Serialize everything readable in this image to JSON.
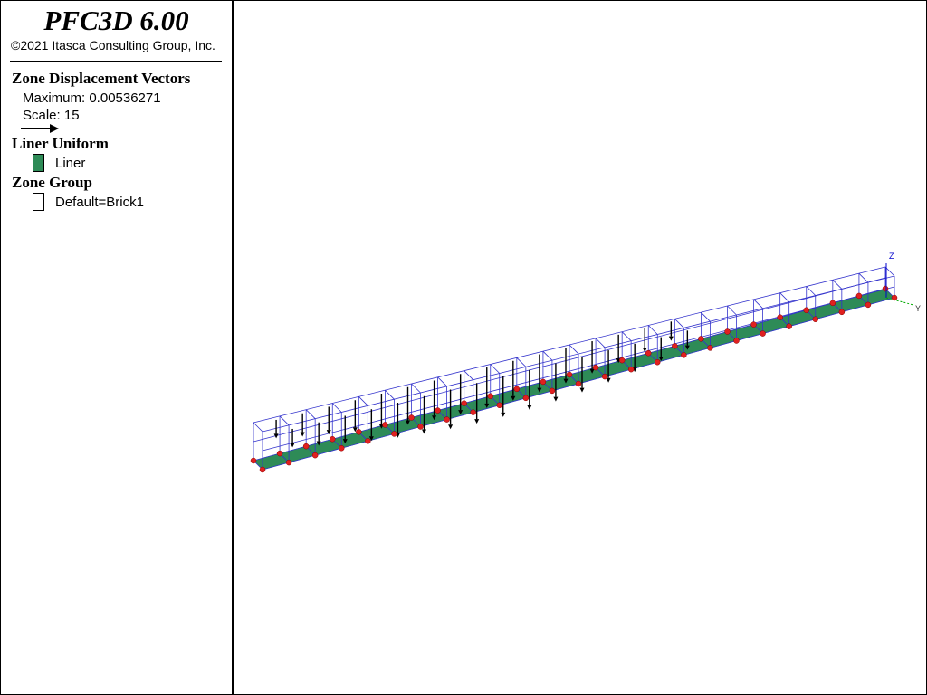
{
  "header": {
    "title": "PFC3D 6.00",
    "copyright": "©2021 Itasca Consulting Group, Inc."
  },
  "legend": {
    "sections": [
      {
        "title": "Zone Displacement Vectors",
        "items": [
          "Maximum: 0.00536271",
          "Scale: 15"
        ]
      },
      {
        "title": "Liner Uniform",
        "items": [
          "Liner"
        ]
      },
      {
        "title": "Zone Group",
        "items": [
          "Default=Brick1"
        ]
      }
    ]
  },
  "axes": {
    "z": "Z",
    "y": "Y"
  }
}
